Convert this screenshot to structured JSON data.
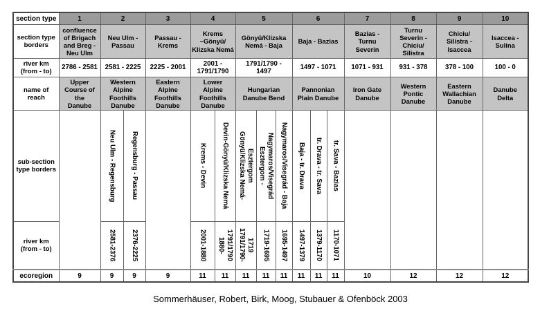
{
  "caption": "Sommerhäuser, Robert, Birk, Moog, Stubauer & Ofenböck 2003",
  "table": {
    "headers": {
      "r1": "section type",
      "r2": "section type\nborders",
      "r3": "river km\n(from - to)",
      "r4": "name of\nreach",
      "r5": "sub-section\ntype borders",
      "r6": "river km\n(from - to)",
      "r7": "ecoregion"
    },
    "section_numbers": [
      "1",
      "2",
      "3",
      "4",
      "5",
      "6",
      "7",
      "8",
      "9",
      "10"
    ],
    "borders": [
      "confluence\nof Brigach\nand Breg -\nNeu Ulm",
      "Neu Ulm -\nPassau",
      "Passau -\nKrems",
      "Krems\n–Gönyü/\nKlizska Nemá",
      "Gönyü/Klizska\nNemá - Baja",
      "Baja - Bazias",
      "Bazias -\nTurnu\nSeverin",
      "Turnu\nSeverin -\nChiciu/\nSilistra",
      "Chiciu/\nSilistra -\nIsaccea",
      "Isaccea -\nSulina"
    ],
    "km": [
      "2786 - 2581",
      "2581 - 2225",
      "2225 - 2001",
      "2001 -\n1791/1790",
      "1791/1790 -\n1497",
      "1497 - 1071",
      "1071 - 931",
      "931 - 378",
      "378 - 100",
      "100 - 0"
    ],
    "reach": [
      "Upper\nCourse of\nthe\nDanube",
      "Western\nAlpine\nFoothills\nDanube",
      "Eastern\nAlpine\nFoothills\nDanube",
      "Lower\nAlpine\nFoothills\nDanube",
      "Hungarian\nDanube Bend",
      "Pannonian\nPlain Danube",
      "Iron Gate\nDanube",
      "Western\nPontic\nDanube",
      "Eastern\nWallachian\nDanube",
      "Danube\nDelta"
    ],
    "sub_borders": [
      "Neu Ulm - Regensburg",
      "Regensburg - Passau",
      "Krems - Devin",
      "Devin-Gönyü/Klizska Nemá",
      "Gönyü/Klizska Nemá-\nEsztergom",
      "Esztergom -\nNagymaros/Visegrád",
      "Nagymaros/Visegrád - Baja",
      "Baja - tr. Drava",
      "tr. Drava - tr. Sava",
      "tr. Sava - Bazias"
    ],
    "sub_km": [
      "2581-2376",
      "2376-2225",
      "2001-1880",
      "1880-\n1791/1790",
      "1791/1790-\n1719",
      "1719-1695",
      "1695-1497",
      "1497-1379",
      "1379-1170",
      "1170-1071"
    ],
    "ecoregion": [
      "9",
      "9",
      "9",
      "9",
      "11",
      "11",
      "11",
      "11",
      "11",
      "11",
      "11",
      "11",
      "10",
      "12",
      "12",
      "12"
    ]
  }
}
